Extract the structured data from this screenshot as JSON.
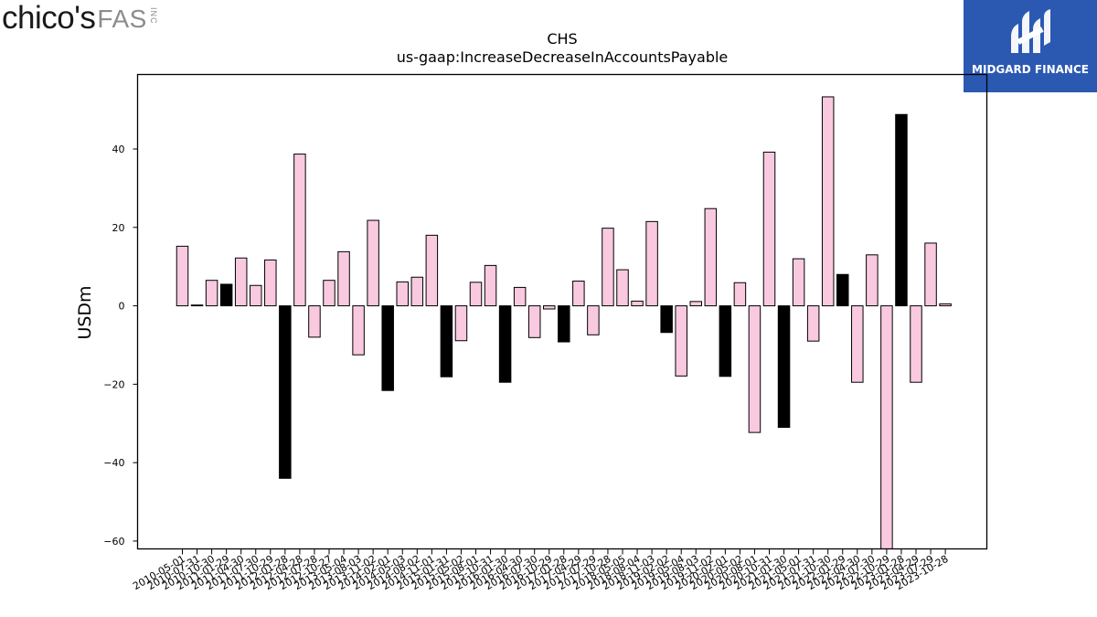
{
  "logos": {
    "left": {
      "main": "chico's",
      "suffix": "FAS",
      "inc": "INC"
    },
    "right": {
      "text": "MIDGARD FINANCE"
    }
  },
  "chart_data": {
    "type": "bar",
    "title": "CHS",
    "subtitle": "us-gaap:IncreaseDecreaseInAccountsPayable",
    "xlabel": "",
    "ylabel": "USDm",
    "ylim": [
      -62,
      59
    ],
    "yticks": [
      -60,
      -40,
      -20,
      0,
      20,
      40
    ],
    "grid": false,
    "colors": {
      "default": "#f9c9e0",
      "highlight": "#000000",
      "edge": "#000000"
    },
    "categories": [
      "2010-05-01",
      "2010-07-31",
      "2010-10-30",
      "2011-01-29",
      "2011-04-30",
      "2011-07-30",
      "2011-10-29",
      "2012-01-28",
      "2012-04-28",
      "2012-07-28",
      "2012-10-27",
      "2013-05-04",
      "2013-08-03",
      "2013-11-02",
      "2014-02-01",
      "2014-05-03",
      "2014-08-02",
      "2014-11-01",
      "2015-01-31",
      "2015-05-02",
      "2015-08-01",
      "2015-10-31",
      "2016-01-30",
      "2016-04-30",
      "2016-07-30",
      "2016-10-29",
      "2017-01-28",
      "2017-04-29",
      "2017-07-29",
      "2017-10-28",
      "2018-05-05",
      "2018-08-04",
      "2018-11-03",
      "2019-02-02",
      "2019-05-04",
      "2019-08-03",
      "2019-11-02",
      "2020-02-01",
      "2020-05-02",
      "2020-08-01",
      "2020-10-31",
      "2021-01-30",
      "2021-05-01",
      "2021-07-31",
      "2021-10-30",
      "2022-01-29",
      "2022-04-30",
      "2022-07-30",
      "2022-10-29",
      "2023-01-28",
      "2023-04-29",
      "2023-07-29",
      "2023-10-28"
    ],
    "values": [
      15.2,
      0.2,
      6.5,
      5.5,
      12.2,
      5.2,
      11.7,
      -44,
      38.7,
      -8,
      6.5,
      13.8,
      -12.5,
      21.8,
      -21.6,
      6.1,
      7.3,
      18,
      -18.1,
      -8.9,
      6,
      10.3,
      -19.5,
      4.7,
      -8.1,
      -0.8,
      -9.2,
      6.3,
      -7.4,
      19.8,
      9.2,
      1.2,
      21.5,
      -6.8,
      -17.9,
      1.1,
      24.8,
      -18,
      5.9,
      -32.3,
      39.2,
      -31,
      12,
      -9,
      53.3,
      8,
      -19.5,
      13,
      -62,
      48.8,
      -19.5,
      16,
      0.5
    ],
    "highlight": [
      false,
      false,
      false,
      true,
      false,
      false,
      false,
      true,
      false,
      false,
      false,
      false,
      false,
      false,
      true,
      false,
      false,
      false,
      true,
      false,
      false,
      false,
      true,
      false,
      false,
      false,
      true,
      false,
      false,
      false,
      false,
      false,
      false,
      true,
      false,
      false,
      false,
      true,
      false,
      false,
      false,
      true,
      false,
      false,
      false,
      true,
      false,
      false,
      false,
      true,
      false,
      false,
      false
    ]
  }
}
